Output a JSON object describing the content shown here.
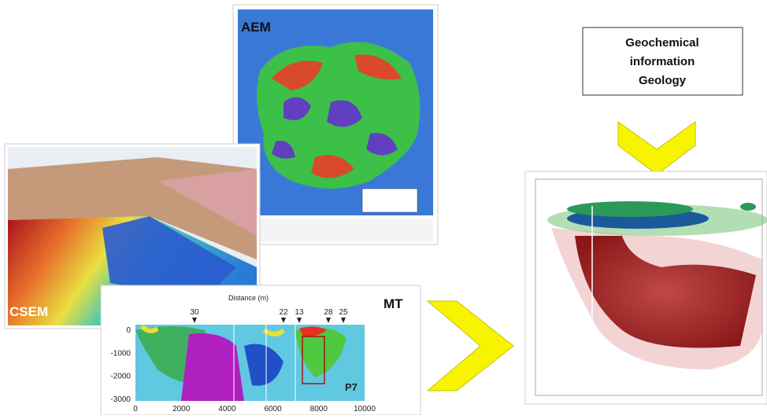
{
  "panels": {
    "aem": {
      "label": "AEM"
    },
    "csem": {
      "label": "CSEM"
    },
    "mt": {
      "label": "MT",
      "x_axis_title": "Distance (m)",
      "station_labels": [
        "30",
        "22",
        "13",
        "28",
        "25"
      ],
      "y_ticks": [
        "0",
        "-1000",
        "-2000",
        "-3000"
      ],
      "x_ticks": [
        "0",
        "2000",
        "4000",
        "6000",
        "8000",
        "10000"
      ],
      "profile_label": "P7"
    }
  },
  "info_box": {
    "lines": [
      "Geochemical",
      "information",
      "Geology"
    ]
  }
}
